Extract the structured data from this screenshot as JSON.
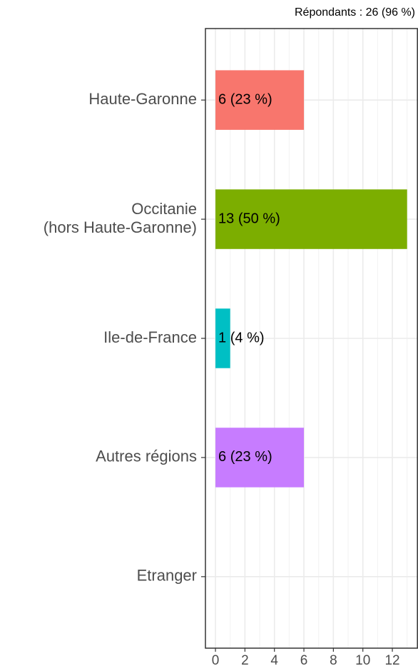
{
  "chart_data": {
    "type": "barh",
    "subtitle": "Répondants : 26 (96 %)",
    "categories": [
      "Haute-Garonne",
      "Occitanie\n(hors Haute-Garonne)",
      "Ile-de-France",
      "Autres régions",
      "Etranger"
    ],
    "values": [
      6,
      13,
      1,
      6,
      0
    ],
    "value_labels": [
      "6 (23 %)",
      "13 (50 %)",
      "1 (4 %)",
      "6 (23 %)",
      null
    ],
    "colors": [
      "#F8766D",
      "#7CAE00",
      "#00BFC4",
      "#C77CFF",
      null
    ],
    "xlim": [
      -0.68,
      13.74
    ],
    "xticks": [
      0,
      2,
      4,
      6,
      8,
      10,
      12
    ],
    "xminor": [
      1,
      3,
      5,
      7,
      9,
      11,
      13
    ],
    "grid": true
  }
}
